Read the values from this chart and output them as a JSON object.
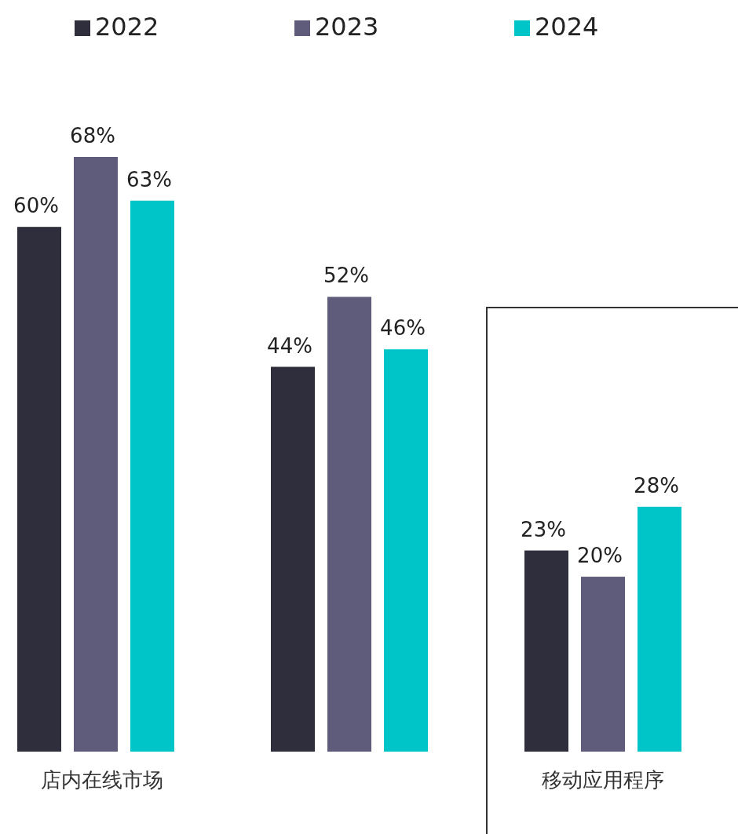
{
  "chart_data": {
    "type": "bar",
    "categories": [
      "店内在线市场",
      null,
      "移动应用程序"
    ],
    "series": [
      {
        "name": "2022",
        "color": "#2f2e3c",
        "values": [
          60,
          44,
          23
        ],
        "value_labels": [
          "60%",
          "44%",
          "23%"
        ]
      },
      {
        "name": "2023",
        "color": "#5f5b7a",
        "values": [
          68,
          52,
          20
        ],
        "value_labels": [
          "68%",
          "52%",
          "20%"
        ]
      },
      {
        "name": "2024",
        "color": "#00c5c8",
        "values": [
          63,
          46,
          28
        ],
        "value_labels": [
          "63%",
          "46%",
          "28%"
        ]
      }
    ],
    "legend": "top left",
    "grid": false
  }
}
